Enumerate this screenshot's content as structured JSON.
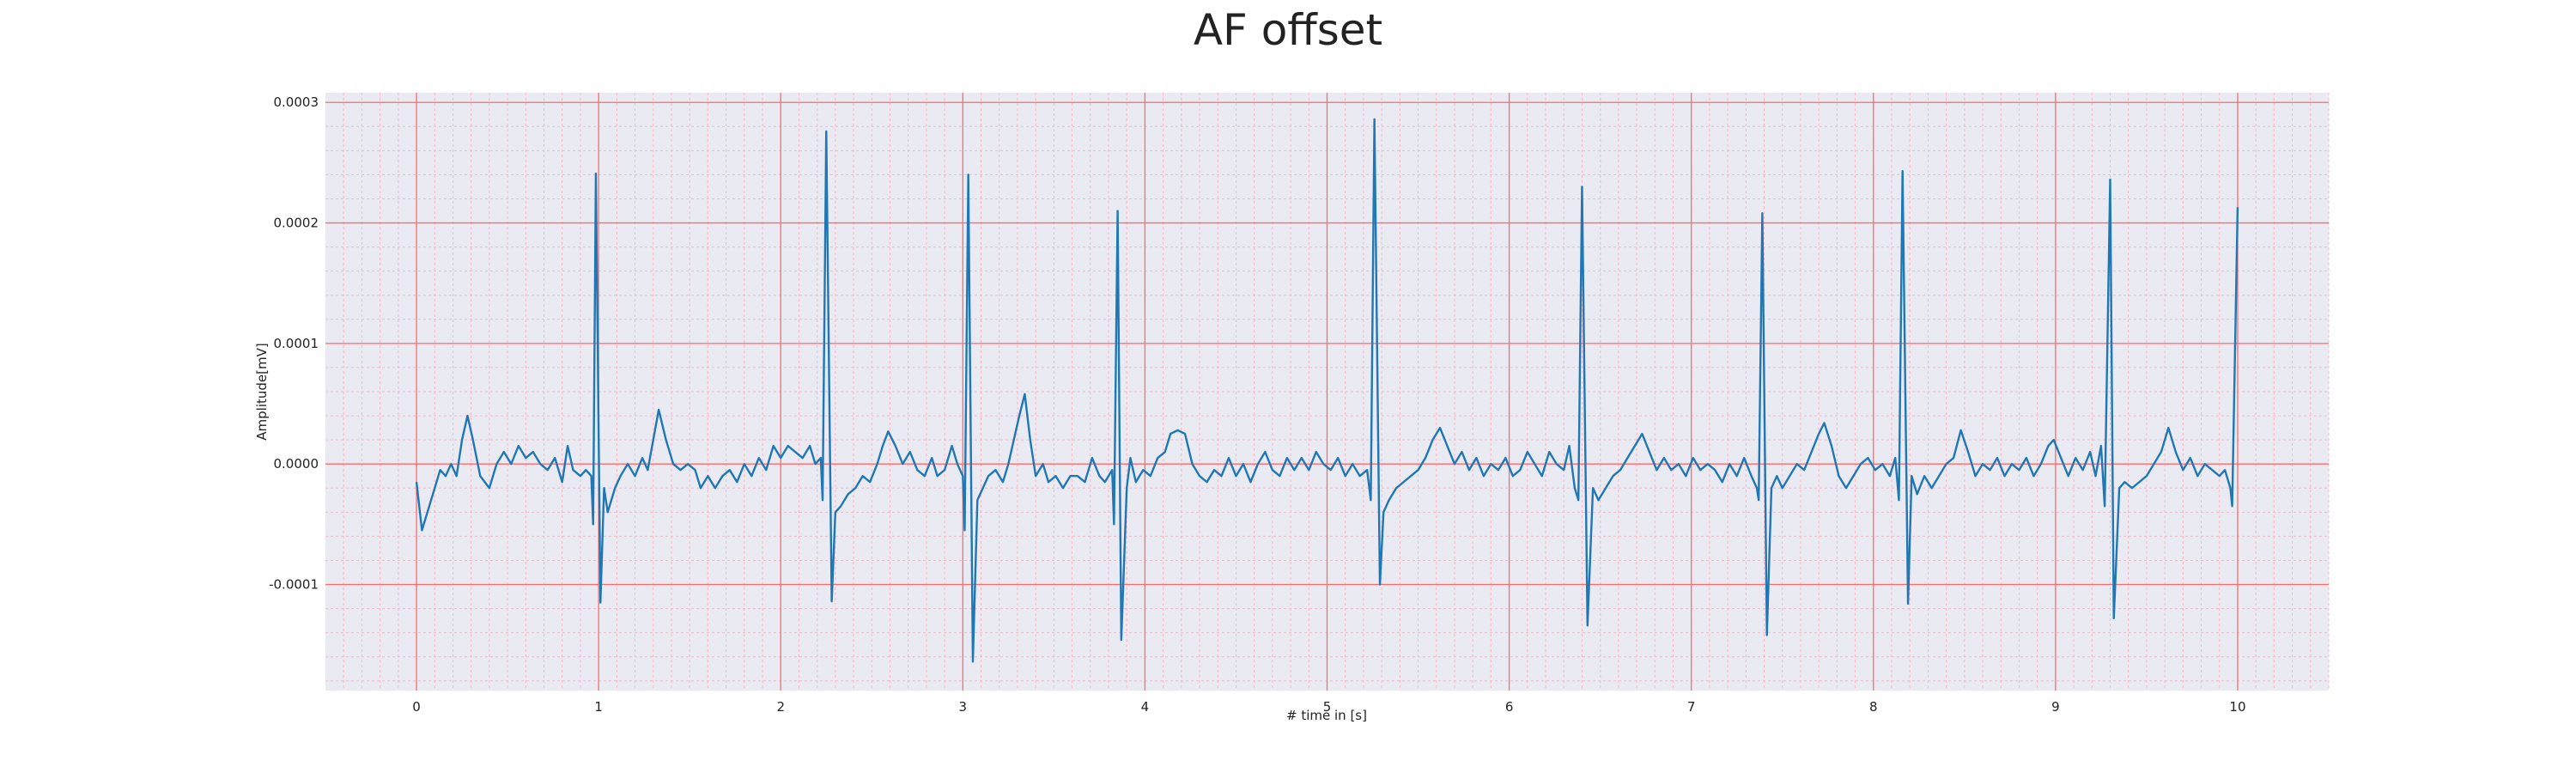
{
  "chart_data": {
    "type": "line",
    "title": "AF offset",
    "x_label": "# time in [s]",
    "y_label": "Amplitude[mV]",
    "color": "#1f77b4",
    "background": "#eaeaf2",
    "grid": true,
    "grid_color": "#ff6b6b",
    "minor_grid": true,
    "minor_grid_color": "#f4b8c4",
    "xlim": [
      -0.5,
      10.5
    ],
    "ylim": [
      -0.000188,
      0.000308
    ],
    "xticks": [
      0,
      1,
      2,
      3,
      4,
      5,
      6,
      7,
      8,
      9,
      10
    ],
    "yticks": [
      -0.0001,
      {
        "value": 0,
        "label": "0.0000"
      },
      0.0001,
      0.0002,
      0.0003
    ],
    "x": [
      0,
      0.03,
      0.08,
      0.13,
      0.16,
      0.19,
      0.22,
      0.25,
      0.28,
      0.31,
      0.35,
      0.4,
      0.44,
      0.48,
      0.52,
      0.56,
      0.6,
      0.64,
      0.68,
      0.72,
      0.76,
      0.8,
      0.83,
      0.86,
      0.9,
      0.93,
      0.96,
      0.97,
      0.985,
      1.01,
      1.03,
      1.05,
      1.09,
      1.12,
      1.16,
      1.2,
      1.24,
      1.27,
      1.3,
      1.33,
      1.37,
      1.41,
      1.45,
      1.49,
      1.53,
      1.56,
      1.6,
      1.64,
      1.68,
      1.72,
      1.76,
      1.8,
      1.84,
      1.88,
      1.92,
      1.96,
      2,
      2.04,
      2.08,
      2.12,
      2.16,
      2.19,
      2.22,
      2.23,
      2.25,
      2.28,
      2.3,
      2.33,
      2.37,
      2.41,
      2.45,
      2.49,
      2.53,
      2.56,
      2.59,
      2.63,
      2.67,
      2.71,
      2.75,
      2.79,
      2.83,
      2.86,
      2.9,
      2.94,
      2.97,
      3,
      3.01,
      3.03,
      3.055,
      3.08,
      3.11,
      3.14,
      3.18,
      3.22,
      3.25,
      3.28,
      3.31,
      3.34,
      3.37,
      3.4,
      3.44,
      3.47,
      3.51,
      3.55,
      3.59,
      3.63,
      3.67,
      3.71,
      3.75,
      3.78,
      3.82,
      3.83,
      3.85,
      3.87,
      3.9,
      3.92,
      3.95,
      3.99,
      4.03,
      4.07,
      4.11,
      4.14,
      4.18,
      4.22,
      4.26,
      4.3,
      4.34,
      4.38,
      4.42,
      4.46,
      4.5,
      4.54,
      4.58,
      4.62,
      4.66,
      4.7,
      4.74,
      4.78,
      4.82,
      4.86,
      4.9,
      4.94,
      4.98,
      5.02,
      5.06,
      5.1,
      5.14,
      5.18,
      5.22,
      5.24,
      5.26,
      5.29,
      5.31,
      5.34,
      5.38,
      5.42,
      5.46,
      5.5,
      5.54,
      5.58,
      5.62,
      5.66,
      5.7,
      5.74,
      5.78,
      5.82,
      5.86,
      5.9,
      5.94,
      5.98,
      6.02,
      6.06,
      6.1,
      6.14,
      6.18,
      6.22,
      6.26,
      6.3,
      6.33,
      6.36,
      6.38,
      6.4,
      6.43,
      6.46,
      6.49,
      6.53,
      6.57,
      6.61,
      6.65,
      6.69,
      6.73,
      6.77,
      6.81,
      6.85,
      6.89,
      6.93,
      6.97,
      7.01,
      7.05,
      7.09,
      7.13,
      7.17,
      7.21,
      7.25,
      7.29,
      7.33,
      7.36,
      7.37,
      7.39,
      7.415,
      7.44,
      7.47,
      7.5,
      7.54,
      7.58,
      7.62,
      7.66,
      7.7,
      7.73,
      7.77,
      7.81,
      7.85,
      7.89,
      7.93,
      7.97,
      8.01,
      8.05,
      8.09,
      8.12,
      8.14,
      8.16,
      8.19,
      8.21,
      8.24,
      8.28,
      8.32,
      8.36,
      8.4,
      8.44,
      8.48,
      8.52,
      8.56,
      8.6,
      8.64,
      8.68,
      8.72,
      8.76,
      8.8,
      8.84,
      8.88,
      8.92,
      8.96,
      8.99,
      9.03,
      9.07,
      9.11,
      9.15,
      9.19,
      9.22,
      9.25,
      9.27,
      9.3,
      9.32,
      9.35,
      9.38,
      9.42,
      9.46,
      9.5,
      9.54,
      9.58,
      9.62,
      9.66,
      9.7,
      9.74,
      9.78,
      9.82,
      9.86,
      9.9,
      9.93,
      9.96,
      9.97,
      10
    ],
    "values": [
      -1.5e-05,
      -5.5e-05,
      -3e-05,
      -5e-06,
      -1e-05,
      0,
      -1e-05,
      2e-05,
      4e-05,
      2e-05,
      -1e-05,
      -2e-05,
      0,
      1e-05,
      0,
      1.5e-05,
      5e-06,
      1e-05,
      0,
      -5e-06,
      5e-06,
      -1.5e-05,
      1.5e-05,
      -5e-06,
      -1e-05,
      -5e-06,
      -1e-05,
      -5e-05,
      0.000241,
      -0.000115,
      -2e-05,
      -4e-05,
      -2e-05,
      -1e-05,
      0,
      -1e-05,
      5e-06,
      -5e-06,
      2e-05,
      4.5e-05,
      2e-05,
      0,
      -5e-06,
      0,
      -5e-06,
      -2e-05,
      -1e-05,
      -2e-05,
      -1e-05,
      -5e-06,
      -1.5e-05,
      0,
      -1e-05,
      5e-06,
      -5e-06,
      1.5e-05,
      5e-06,
      1.5e-05,
      1e-05,
      5e-06,
      1.5e-05,
      0,
      5e-06,
      -3e-05,
      0.000276,
      -0.000114,
      -4e-05,
      -3.5e-05,
      -2.5e-05,
      -2e-05,
      -1e-05,
      -1.5e-05,
      0,
      1.5e-05,
      2.7e-05,
      1.5e-05,
      0,
      1e-05,
      -5e-06,
      -1e-05,
      5e-06,
      -1e-05,
      -5e-06,
      1.5e-05,
      0,
      -1e-05,
      -5.5e-05,
      0.00024,
      -0.000164,
      -3e-05,
      -2e-05,
      -1e-05,
      -5e-06,
      -1.5e-05,
      0,
      2e-05,
      4e-05,
      5.8e-05,
      2e-05,
      -1e-05,
      0,
      -1.5e-05,
      -1e-05,
      -2e-05,
      -1e-05,
      -1e-05,
      -1.5e-05,
      5e-06,
      -1e-05,
      -1.5e-05,
      -5e-06,
      -5e-05,
      0.00021,
      -0.000146,
      -2e-05,
      5e-06,
      -1.5e-05,
      -5e-06,
      -1e-05,
      5e-06,
      1e-05,
      2.5e-05,
      2.8e-05,
      2.5e-05,
      0,
      -1e-05,
      -1.5e-05,
      -5e-06,
      -1e-05,
      5e-06,
      -1e-05,
      0,
      -1.5e-05,
      0,
      1e-05,
      -5e-06,
      -1e-05,
      5e-06,
      -5e-06,
      5e-06,
      -5e-06,
      1e-05,
      0,
      -5e-06,
      5e-06,
      -1e-05,
      0,
      -1e-05,
      -5e-06,
      -3e-05,
      0.000286,
      -0.0001,
      -4e-05,
      -3e-05,
      -2e-05,
      -1.5e-05,
      -1e-05,
      -5e-06,
      5e-06,
      2e-05,
      3e-05,
      1.5e-05,
      0,
      1e-05,
      -5e-06,
      5e-06,
      -1e-05,
      0,
      -5e-06,
      5e-06,
      -1e-05,
      -5e-06,
      1e-05,
      0,
      -1e-05,
      1e-05,
      0,
      -5e-06,
      1.5e-05,
      -2e-05,
      -3e-05,
      0.00023,
      -0.000134,
      -2e-05,
      -3e-05,
      -2e-05,
      -1e-05,
      -5e-06,
      5e-06,
      1.5e-05,
      2.5e-05,
      1e-05,
      -5e-06,
      5e-06,
      -5e-06,
      0,
      -1e-05,
      5e-06,
      -5e-06,
      0,
      -5e-06,
      -1.5e-05,
      0,
      -1e-05,
      5e-06,
      -1e-05,
      -2e-05,
      -3e-05,
      0.000208,
      -0.000142,
      -2e-05,
      -1e-05,
      -2e-05,
      -1e-05,
      0,
      -5e-06,
      1e-05,
      2.5e-05,
      3.4e-05,
      1.5e-05,
      -1e-05,
      -2e-05,
      -1e-05,
      0,
      5e-06,
      -5e-06,
      0,
      -1e-05,
      5e-06,
      -3e-05,
      0.000243,
      -0.000116,
      -1e-05,
      -2.5e-05,
      -1e-05,
      -2e-05,
      -1e-05,
      0,
      5e-06,
      2.8e-05,
      1e-05,
      -1e-05,
      0,
      -5e-06,
      5e-06,
      -1e-05,
      0,
      -5e-06,
      5e-06,
      -1e-05,
      0,
      1.5e-05,
      2e-05,
      5e-06,
      -1e-05,
      5e-06,
      -5e-06,
      1e-05,
      -1e-05,
      1.5e-05,
      -3.5e-05,
      0.000236,
      -0.000128,
      -2e-05,
      -1.5e-05,
      -2e-05,
      -1.5e-05,
      -1e-05,
      0,
      1e-05,
      3e-05,
      1e-05,
      -5e-06,
      5e-06,
      -1e-05,
      0,
      -5e-06,
      -1e-05,
      -5e-06,
      -2e-05,
      -3.5e-05,
      0.000213
    ]
  }
}
